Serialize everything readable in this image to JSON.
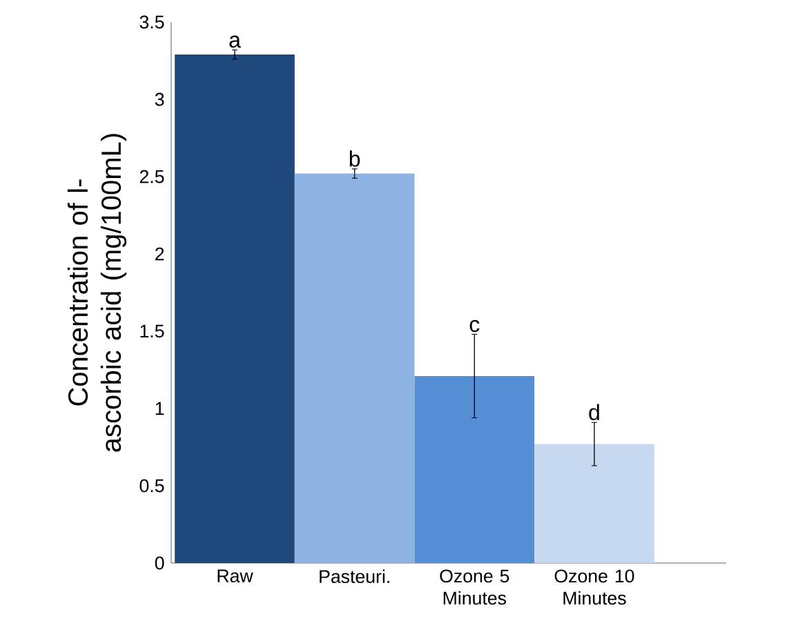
{
  "chart_data": {
    "type": "bar",
    "ylabel": "Concentration of l-ascorbic acid (mg/100mL)",
    "categories": [
      "Raw",
      "Pasteuri.",
      "Ozone 5 Minutes",
      "Ozone 10 Minutes"
    ],
    "values": [
      3.29,
      2.52,
      1.21,
      0.77
    ],
    "errors": [
      0.03,
      0.03,
      0.27,
      0.14
    ],
    "colors": [
      "#1f497d",
      "#8db3e2",
      "#558ed5",
      "#c6d9f1"
    ],
    "ylim": [
      0,
      3.5
    ],
    "yticks": [
      0,
      0.5,
      1,
      1.5,
      2,
      2.5,
      3,
      3.5
    ],
    "annotations": [
      {
        "text": "a",
        "x": "Raw",
        "y": 3.32
      },
      {
        "text": "b",
        "x": "Pasteuri.",
        "y": 2.55
      },
      {
        "text": "c",
        "x": "Ozone 5 Minutes",
        "y": 1.48
      },
      {
        "text": "d",
        "x": "Ozone 10 Minutes",
        "y": 0.91
      }
    ]
  }
}
